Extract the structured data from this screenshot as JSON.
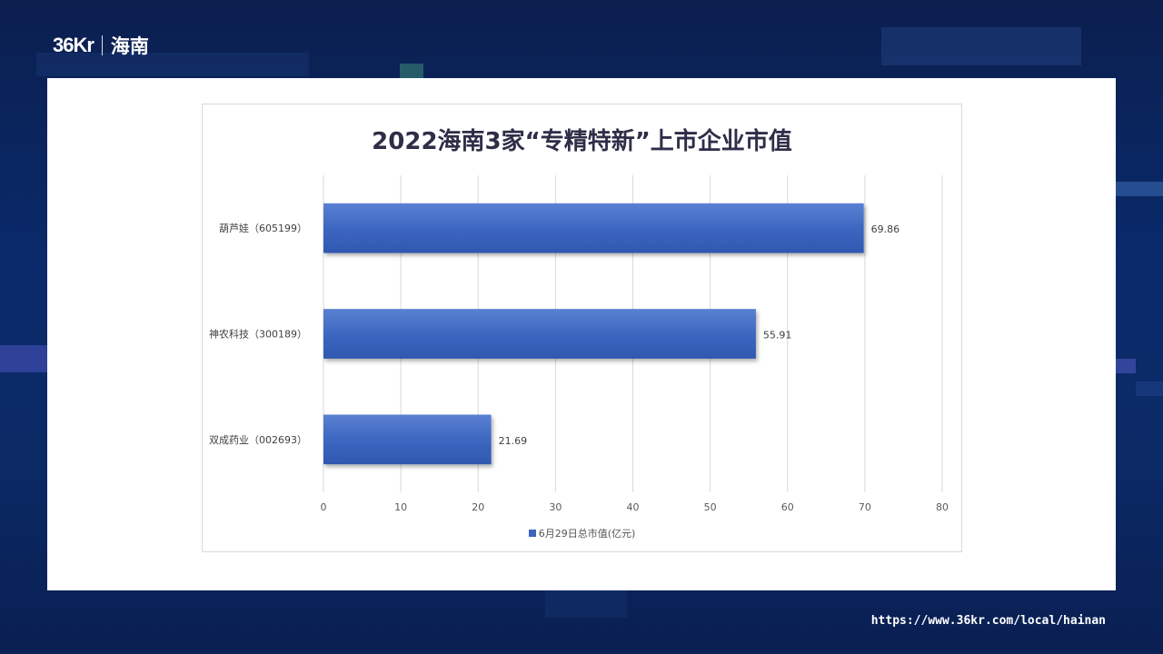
{
  "brand": {
    "logo_text": "36Kr",
    "city": "海南"
  },
  "footer": {
    "url": "https://www.36kr.com/local/hainan"
  },
  "colors": {
    "background": "#0a2a6b",
    "bar": "#3a64bd",
    "title": "#2e2e48"
  },
  "chart_data": {
    "type": "bar",
    "orientation": "horizontal",
    "title": "2022海南3家“专精特新”上市企业市值",
    "categories": [
      "葫芦娃（605199）",
      "神农科技（300189）",
      "双成药业（002693）"
    ],
    "series": [
      {
        "name": "6月29日总市值(亿元)",
        "values": [
          69.86,
          55.91,
          21.69
        ]
      }
    ],
    "data_labels": [
      "69.86",
      "55.91",
      "21.69"
    ],
    "xlim": [
      0,
      80
    ],
    "xticks": [
      0,
      10,
      20,
      30,
      40,
      50,
      60,
      70,
      80
    ],
    "grid": "vertical",
    "legend": "bottom"
  }
}
